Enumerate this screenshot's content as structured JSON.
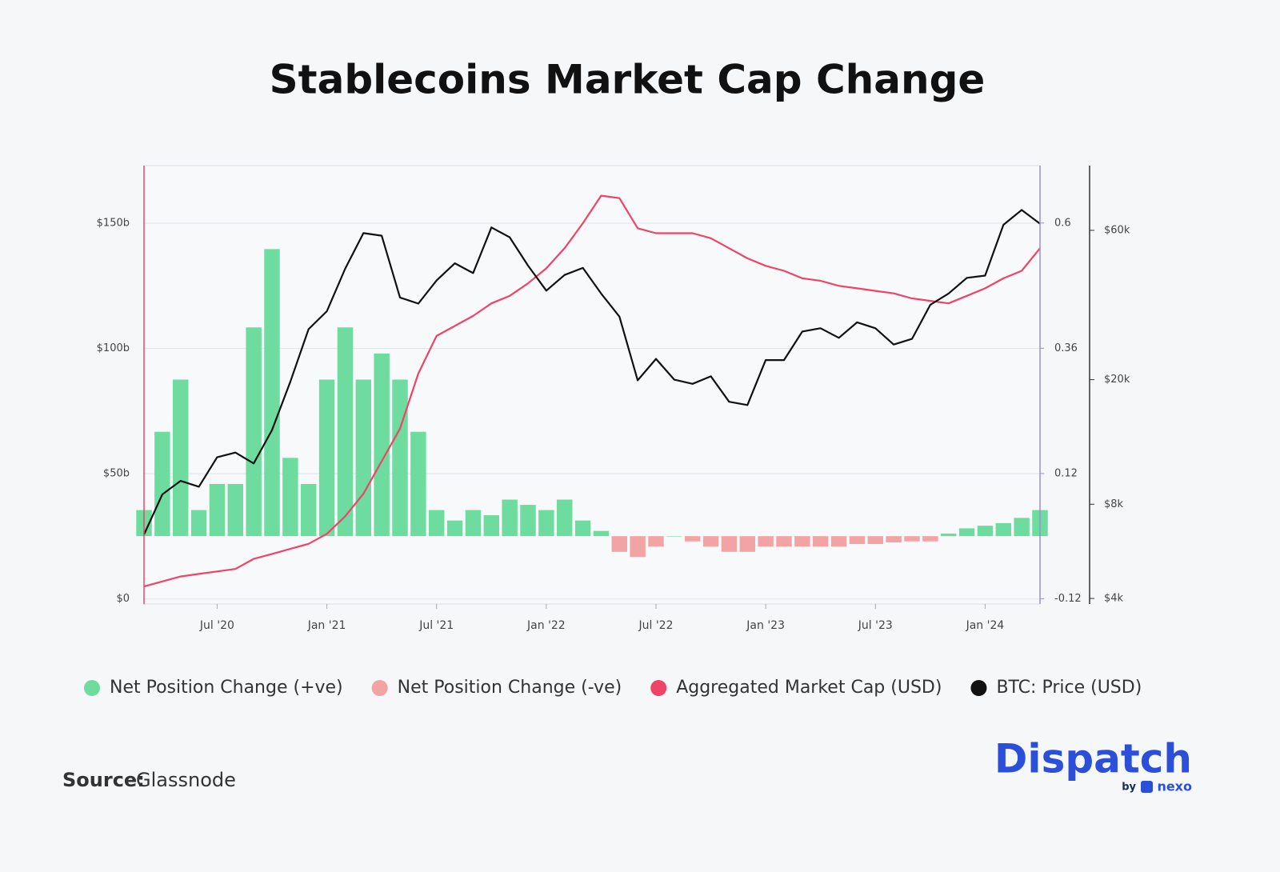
{
  "chart_data": {
    "type": "combo",
    "title": "Stablecoins Market Cap Change",
    "x": [
      "2020-03",
      "2020-04",
      "2020-05",
      "2020-06",
      "2020-07",
      "2020-08",
      "2020-09",
      "2020-10",
      "2020-11",
      "2020-12",
      "2021-01",
      "2021-02",
      "2021-03",
      "2021-04",
      "2021-05",
      "2021-06",
      "2021-07",
      "2021-08",
      "2021-09",
      "2021-10",
      "2021-11",
      "2021-12",
      "2022-01",
      "2022-02",
      "2022-03",
      "2022-04",
      "2022-05",
      "2022-06",
      "2022-07",
      "2022-08",
      "2022-09",
      "2022-10",
      "2022-11",
      "2022-12",
      "2023-01",
      "2023-02",
      "2023-03",
      "2023-04",
      "2023-05",
      "2023-06",
      "2023-07",
      "2023-08",
      "2023-09",
      "2023-10",
      "2023-11",
      "2023-12",
      "2024-01",
      "2024-02",
      "2024-03",
      "2024-04"
    ],
    "xlim": [
      "2020-03",
      "2024-04"
    ],
    "xticks": [
      {
        "value": "2020-07",
        "label": "Jul '20"
      },
      {
        "value": "2021-01",
        "label": "Jan '21"
      },
      {
        "value": "2021-07",
        "label": "Jul '21"
      },
      {
        "value": "2022-01",
        "label": "Jan '22"
      },
      {
        "value": "2022-07",
        "label": "Jul '22"
      },
      {
        "value": "2023-01",
        "label": "Jan '23"
      },
      {
        "value": "2023-07",
        "label": "Jul '23"
      },
      {
        "value": "2024-01",
        "label": "Jan '24"
      }
    ],
    "ylim": [
      -2,
      173
    ],
    "yticks": [
      {
        "value": 0,
        "label": "$0"
      },
      {
        "value": 50,
        "label": "$50b"
      },
      {
        "value": 100,
        "label": "$100b"
      },
      {
        "value": 150,
        "label": "$150b"
      }
    ],
    "y2lim": [
      -0.13,
      0.71
    ],
    "y2ticks": [
      -0.12,
      0.12,
      0.36,
      0.6
    ],
    "y3lim": [
      3840,
      96600
    ],
    "y3log": true,
    "y3ticks": [
      {
        "value": 4000,
        "label": "$4k"
      },
      {
        "value": 8000,
        "label": "$8k"
      },
      {
        "value": 20000,
        "label": "$20k"
      },
      {
        "value": 60000,
        "label": "$60k"
      }
    ],
    "grid": true,
    "series": [
      {
        "name": "Net Position Change (+ve)",
        "type": "bar",
        "axis": "y2",
        "color": "#6ddc9e",
        "values": [
          0.05,
          0.2,
          0.3,
          0.05,
          0.1,
          0.1,
          0.4,
          0.55,
          0.15,
          0.1,
          0.3,
          0.4,
          0.3,
          0.35,
          0.3,
          0.2,
          0.05,
          0.03,
          0.05,
          0.04,
          0.07,
          0.06,
          0.05,
          0.07,
          0.03,
          0.01,
          null,
          null,
          null,
          0,
          null,
          null,
          null,
          null,
          null,
          null,
          null,
          null,
          null,
          null,
          null,
          null,
          null,
          null,
          0.005,
          0.015,
          0.02,
          0.025,
          0.035,
          0.05
        ]
      },
      {
        "name": "Net Position Change (-ve)",
        "type": "bar",
        "axis": "y2",
        "color": "#f2a3a3",
        "values": [
          null,
          null,
          null,
          null,
          null,
          null,
          null,
          null,
          null,
          null,
          null,
          null,
          null,
          null,
          null,
          null,
          null,
          null,
          null,
          null,
          null,
          null,
          null,
          null,
          null,
          null,
          -0.03,
          -0.04,
          -0.02,
          null,
          -0.01,
          -0.02,
          -0.03,
          -0.03,
          -0.02,
          -0.02,
          -0.02,
          -0.02,
          -0.02,
          -0.015,
          -0.015,
          -0.012,
          -0.01,
          -0.01,
          null,
          null,
          null,
          null,
          null,
          null
        ]
      },
      {
        "name": "Aggregated Market Cap (USD)",
        "type": "line",
        "axis": "y",
        "color": "#ef4468",
        "values": [
          5,
          7,
          9,
          10,
          11,
          12,
          16,
          18,
          20,
          22,
          26,
          33,
          42,
          55,
          68,
          90,
          105,
          109,
          113,
          118,
          121,
          126,
          132,
          140,
          150,
          161,
          160,
          148,
          146,
          146,
          146,
          144,
          140,
          136,
          133,
          131,
          128,
          127,
          125,
          124,
          123,
          122,
          120,
          119,
          118,
          121,
          124,
          128,
          131,
          140
        ]
      },
      {
        "name": "BTC: Price (USD)",
        "type": "line",
        "axis": "y3",
        "color": "#111111",
        "values": [
          6400,
          8600,
          9500,
          9100,
          11300,
          11700,
          10800,
          13800,
          19700,
          29000,
          33100,
          45200,
          58800,
          57700,
          36600,
          35000,
          41500,
          47100,
          43800,
          61300,
          57000,
          46300,
          38500,
          43200,
          45500,
          37700,
          31800,
          19900,
          23300,
          20000,
          19400,
          20500,
          17000,
          16600,
          23100,
          23100,
          28500,
          29200,
          27200,
          30500,
          29200,
          25900,
          27000,
          34700,
          37700,
          42300,
          43000,
          62500,
          69700,
          63000
        ]
      }
    ],
    "source_label": "Source:",
    "source": "Glassnode",
    "logo": "Dispatch",
    "logo_by": "by",
    "logo_brand": "nexo"
  }
}
